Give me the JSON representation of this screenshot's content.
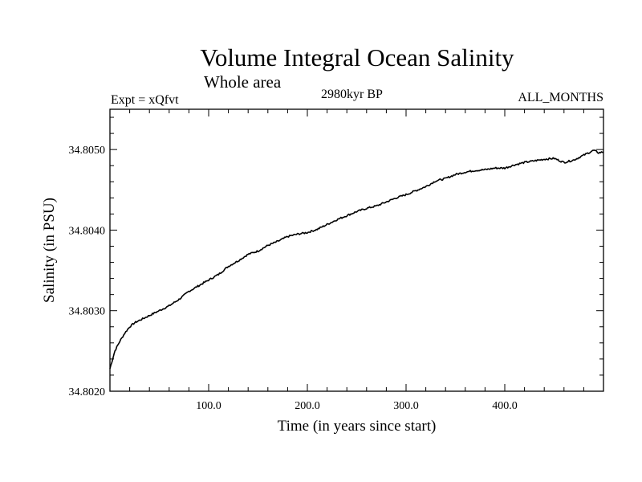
{
  "chart_data": {
    "type": "line",
    "title": "Volume Integral Ocean Salinity",
    "subtitle": "Whole area",
    "annotations": {
      "left": "Expt = xQfvt",
      "center": "2980kyr BP",
      "right": "ALL_MONTHS"
    },
    "xlabel": "Time (in years since start)",
    "ylabel": "Salinity (in PSU)",
    "xlim": [
      0,
      500
    ],
    "ylim": [
      34.802,
      34.8055
    ],
    "x_ticks": [
      100,
      200,
      300,
      400
    ],
    "x_tick_labels": [
      "100.0",
      "200.0",
      "300.0",
      "400.0"
    ],
    "y_ticks": [
      34.802,
      34.803,
      34.804,
      34.805
    ],
    "y_tick_labels": [
      "34.8020",
      "34.8030",
      "34.8040",
      "34.8050"
    ],
    "series": [
      {
        "name": "Volume Integral Ocean Salinity",
        "x": [
          0,
          5,
          10,
          15,
          20,
          25,
          30,
          40,
          50,
          60,
          70,
          80,
          90,
          100,
          110,
          120,
          130,
          140,
          150,
          160,
          170,
          180,
          190,
          200,
          210,
          220,
          230,
          240,
          250,
          260,
          270,
          280,
          290,
          300,
          310,
          320,
          330,
          340,
          350,
          360,
          370,
          380,
          390,
          400,
          410,
          420,
          430,
          440,
          450,
          460,
          470,
          480,
          490,
          495,
          500
        ],
        "y": [
          34.80228,
          34.8025,
          34.80262,
          34.80272,
          34.8028,
          34.80285,
          34.80288,
          34.80294,
          34.803,
          34.80306,
          34.80314,
          34.80324,
          34.80331,
          34.80338,
          34.80345,
          34.80355,
          34.80362,
          34.8037,
          34.80374,
          34.80381,
          34.80386,
          34.80392,
          34.80395,
          34.80397,
          34.80401,
          34.80407,
          34.80413,
          34.80418,
          34.80423,
          34.80427,
          34.8043,
          34.80435,
          34.8044,
          34.80444,
          34.80449,
          34.80454,
          34.80461,
          34.80464,
          34.80469,
          34.80472,
          34.80474,
          34.80475,
          34.80477,
          34.80477,
          34.80481,
          34.80484,
          34.80486,
          34.80488,
          34.80489,
          34.80484,
          34.80487,
          34.80493,
          34.80499,
          34.80496,
          34.80497
        ]
      }
    ]
  }
}
